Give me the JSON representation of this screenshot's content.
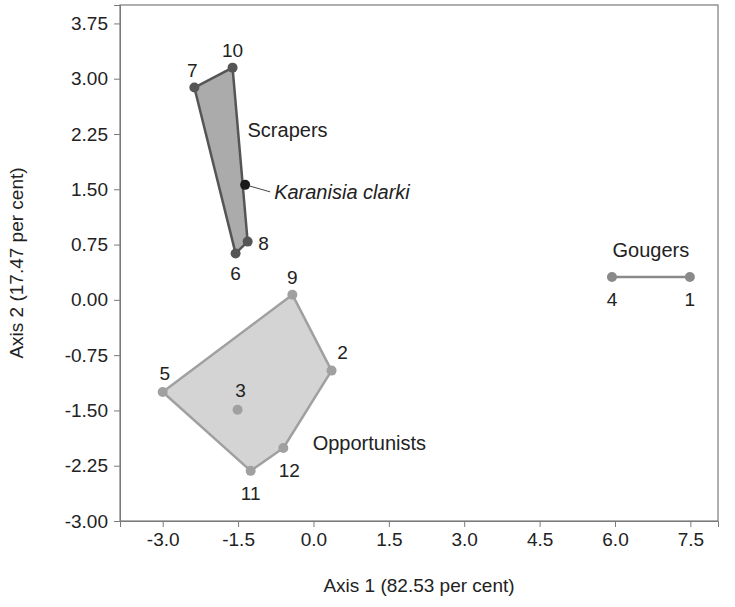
{
  "chart_data": {
    "type": "scatter",
    "x_label": "Axis 1 (82.53 per cent)",
    "y_label": "Axis 2 (17.47 per cent)",
    "xlim": [
      -3.85,
      8.05
    ],
    "ylim": [
      -3.0,
      4.0
    ],
    "xticks": [
      {
        "value": -3.0,
        "label": "-3.0"
      },
      -1.5,
      {
        "value": 0,
        "label": "0.0"
      },
      1.5,
      {
        "value": 3.0,
        "label": "3.0"
      },
      4.5,
      {
        "value": 6.0,
        "label": "6.0"
      },
      7.5
    ],
    "yticks": [
      {
        "value": -3.0,
        "label": "-3.00"
      },
      -2.25,
      {
        "value": -1.5,
        "label": "-1.50"
      },
      -0.75,
      {
        "value": 0,
        "label": "0.00"
      },
      0.75,
      {
        "value": 1.5,
        "label": "1.50"
      },
      2.25,
      {
        "value": 3.0,
        "label": "3.00"
      },
      3.75
    ],
    "series": [
      {
        "name": "Scrapers",
        "color": "#555555",
        "fill": "#ababab",
        "marker": "circle",
        "labels": [
          "7",
          "10",
          "8",
          "6"
        ],
        "x": [
          -2.37,
          -1.61,
          -1.31,
          -1.55
        ],
        "y": [
          2.88,
          3.15,
          0.79,
          0.63
        ]
      },
      {
        "name": "Opportunists",
        "color": "#a0a0a0",
        "fill": "#d4d4d4",
        "marker": "circle",
        "labels": [
          "9",
          "2",
          "12",
          "11",
          "5",
          "3"
        ],
        "x": [
          -0.42,
          0.36,
          -0.6,
          -1.25,
          -3.0,
          -1.51
        ],
        "y": [
          0.07,
          -0.96,
          -2.01,
          -2.32,
          -1.25,
          -1.49
        ]
      },
      {
        "name": "Gougers",
        "color": "#8a8a8a",
        "marker": "circle",
        "labels": [
          "4",
          "1"
        ],
        "x": [
          5.94,
          7.49
        ],
        "y": [
          0.31,
          0.31
        ]
      }
    ],
    "highlight": {
      "label": "Karanisia clarki",
      "color": "#1a1a1a",
      "x": -1.36,
      "y": 1.56
    }
  }
}
